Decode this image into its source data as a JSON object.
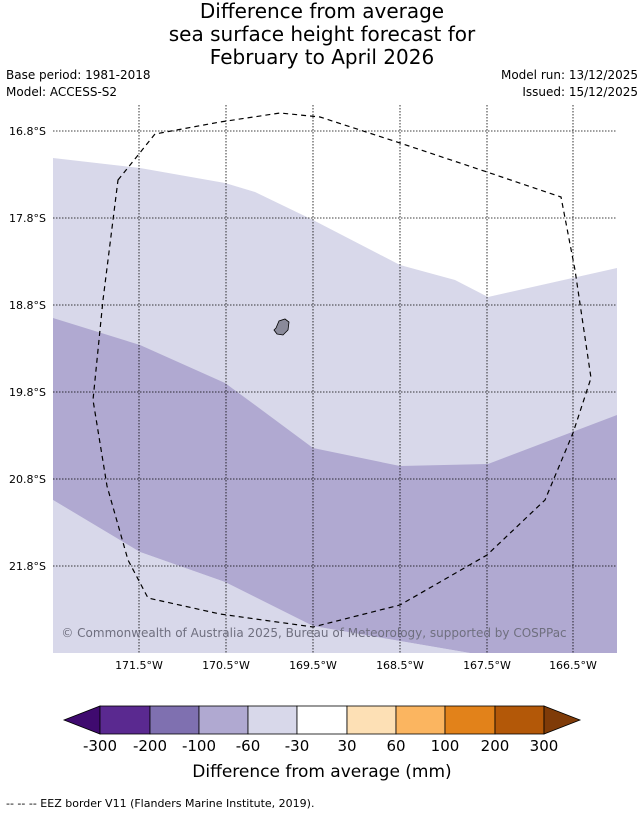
{
  "title": {
    "line1": "Difference from average",
    "line2": "sea surface height forecast for",
    "line3": "February to April 2026"
  },
  "meta": {
    "base_period": "Base period: 1981-2018",
    "model": "Model: ACCESS-S2",
    "model_run": "Model run: 13/12/2025",
    "issued": "Issued: 15/12/2025"
  },
  "map": {
    "lat_labels": [
      "16.8°S",
      "17.8°S",
      "18.8°S",
      "19.8°S",
      "20.8°S",
      "21.8°S"
    ],
    "lon_labels": [
      "171.5°W",
      "170.5°W",
      "169.5°W",
      "168.5°W",
      "167.5°W",
      "166.5°W"
    ],
    "copyright": "© Commonwealth of Australia 2025, Bureau of Meteorology, supported by COSPPac"
  },
  "colorbar": {
    "title": "Difference from average (mm)",
    "tick_labels": [
      "-300",
      "-200",
      "-100",
      "-60",
      "-30",
      "30",
      "60",
      "100",
      "200",
      "300"
    ],
    "colors": [
      "#3f0a6f",
      "#5a2990",
      "#7f70b0",
      "#b0a9d1",
      "#d8d8ea",
      "#ffffff",
      "#fde0b5",
      "#fbb560",
      "#e2821a",
      "#b35808",
      "#7f3b08"
    ]
  },
  "footnote": "--  --  -- EEZ border V11 (Flanders Marine Institute, 2019)."
}
